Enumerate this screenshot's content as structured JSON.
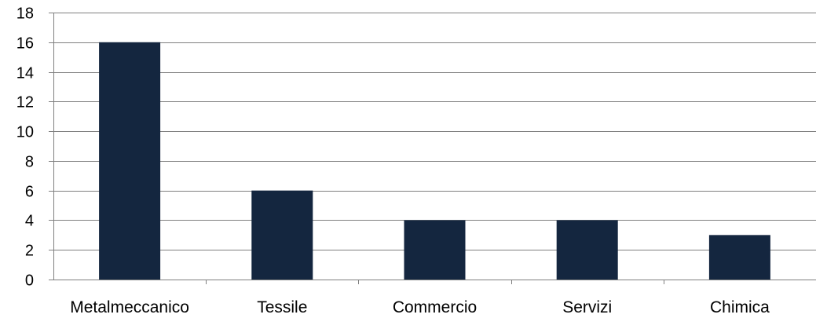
{
  "chart_data": {
    "type": "bar",
    "title": "",
    "xlabel": "",
    "ylabel": "",
    "categories": [
      "Metalmeccanico",
      "Tessile",
      "Commercio",
      "Servizi",
      "Chimica"
    ],
    "values": [
      16,
      6,
      4,
      4,
      3
    ],
    "ylim": [
      0,
      18
    ],
    "yticks": [
      0,
      2,
      4,
      6,
      8,
      10,
      12,
      14,
      16,
      18
    ],
    "grid": true,
    "legend": "none",
    "colors": {
      "bar": "#14263f",
      "grid": "#7f7f7f",
      "axis": "#7f7f7f"
    }
  }
}
